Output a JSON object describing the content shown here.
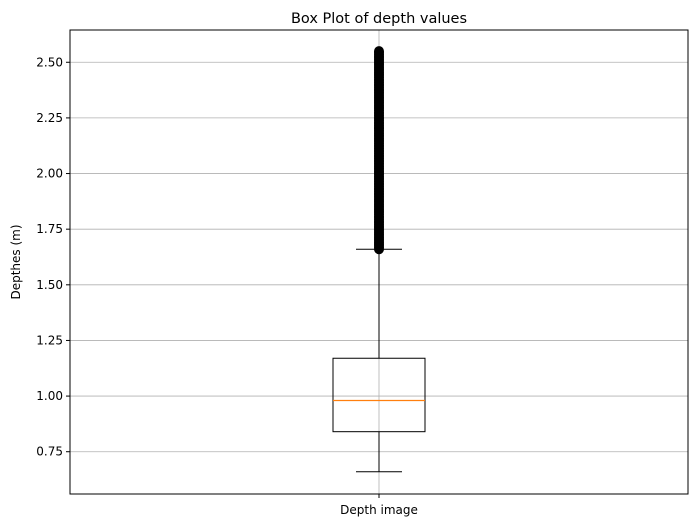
{
  "chart_data": {
    "type": "box",
    "title": "Box Plot of depth values",
    "xlabel": "",
    "ylabel": "Depthes (m)",
    "categories": [
      "Depth image"
    ],
    "ylim": [
      0.56,
      2.645
    ],
    "yticks": [
      0.75,
      1.0,
      1.25,
      1.5,
      1.75,
      2.0,
      2.25,
      2.5
    ],
    "ytick_labels": [
      "0.75",
      "1.00",
      "1.25",
      "1.50",
      "1.75",
      "2.00",
      "2.25",
      "2.50"
    ],
    "grid": true,
    "box": {
      "whisker_low": 0.66,
      "q1": 0.84,
      "median": 0.98,
      "q3": 1.17,
      "whisker_high": 1.66,
      "outliers_range": [
        1.66,
        2.55
      ]
    },
    "colors": {
      "median": "#ff7f0e",
      "box": "#000000",
      "outliers": "#000000",
      "grid": "#b0b0b0"
    }
  }
}
